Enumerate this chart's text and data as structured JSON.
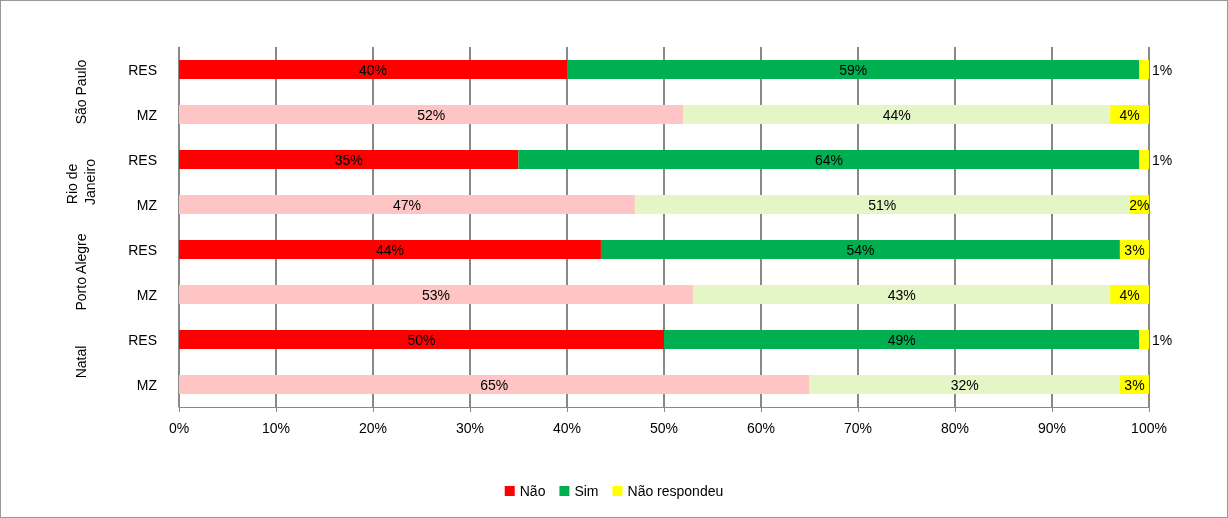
{
  "chart_data": {
    "type": "bar",
    "orientation": "horizontal",
    "stacked": true,
    "categories": [
      "RES",
      "MZ",
      "RES",
      "MZ",
      "RES",
      "MZ",
      "RES",
      "MZ"
    ],
    "annotations": [
      "São Paulo",
      "Rio de Janeiro",
      "Porto Alegre",
      "Natal"
    ],
    "series": [
      {
        "name": "Não",
        "color": "#ff0000",
        "colors": [
          "#ff0000",
          "#ffc4c4",
          "#ff0000",
          "#ffc4c4",
          "#ff0000",
          "#ffc4c4",
          "#ff0000",
          "#ffc4c4"
        ],
        "values": [
          40,
          52,
          35,
          47,
          43.5,
          53,
          50,
          65
        ],
        "value_labels": [
          "40%",
          "52%",
          "35%",
          "47%",
          "44%",
          "53%",
          "50%",
          "65%"
        ]
      },
      {
        "name": "Sim",
        "color": "#00b050",
        "colors": [
          "#00b050",
          "#e4f5c6",
          "#00b050",
          "#e4f5c6",
          "#00b050",
          "#e4f5c6",
          "#00b050",
          "#e4f5c6"
        ],
        "values": [
          59,
          44,
          64,
          51,
          53.5,
          43,
          49,
          32
        ],
        "value_labels": [
          "59%",
          "44%",
          "64%",
          "51%",
          "54%",
          "43%",
          "49%",
          "32%"
        ]
      },
      {
        "name": "Não respondeu",
        "color": "#ffff00",
        "values": [
          1,
          4,
          1,
          2,
          3,
          4,
          1,
          3
        ],
        "value_labels": [
          "1%",
          "4%",
          "1%",
          "2%",
          "3%",
          "4%",
          "1%",
          "3%"
        ]
      }
    ],
    "xlim": [
      0,
      100
    ],
    "xticks": [
      {
        "value": 0,
        "label": "0%"
      },
      {
        "value": 10,
        "label": "10%"
      },
      {
        "value": 20,
        "label": "20%"
      },
      {
        "value": 30,
        "label": "30%"
      },
      {
        "value": 40,
        "label": "40%"
      },
      {
        "value": 50,
        "label": "50%"
      },
      {
        "value": 60,
        "label": "60%"
      },
      {
        "value": 70,
        "label": "70%"
      },
      {
        "value": 80,
        "label": "80%"
      },
      {
        "value": 90,
        "label": "90%"
      },
      {
        "value": 100,
        "label": "100%"
      }
    ],
    "grid": "x",
    "legend": "bottom"
  }
}
